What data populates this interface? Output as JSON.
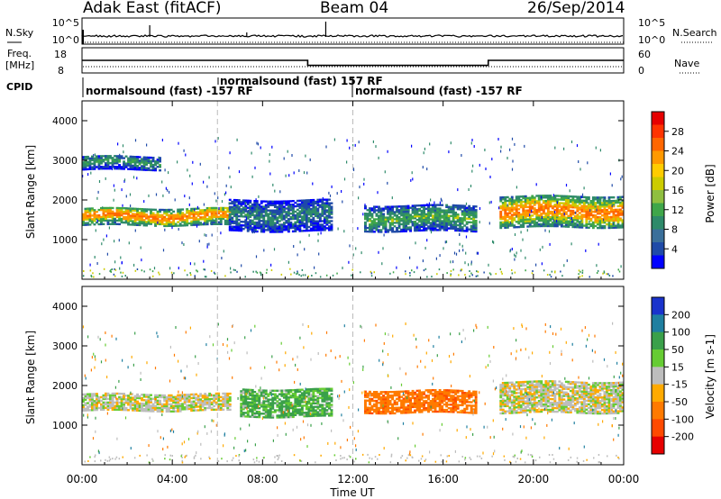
{
  "header": {
    "station": "Adak East (fitACF)",
    "beam": "Beam 04",
    "date": "26/Sep/2014"
  },
  "top_panel": {
    "left_label": "N.Sky",
    "right_label": "N.Search",
    "left_ticks": [
      "10^5",
      "10^0"
    ],
    "right_ticks": [
      "10^5",
      "10^0"
    ]
  },
  "freq_panel": {
    "left_label_1": "Freq.",
    "left_label_2": "[MHz]",
    "right_label": "Nave",
    "left_ticks": [
      "18",
      "8"
    ],
    "right_ticks": [
      "60",
      "0"
    ]
  },
  "cpid_panel": {
    "label": "CPID",
    "segments": [
      {
        "text": "normalsound (fast) -157 RF"
      },
      {
        "text": "normalsound (fast) 157 RF"
      },
      {
        "text": "normalsound (fast) -157 RF"
      }
    ]
  },
  "power_panel": {
    "ylabel": "Slant Range [km]",
    "yticks": [
      "4000",
      "3000",
      "2000",
      "1000"
    ],
    "colorbar": {
      "label": "Power [dB]",
      "ticks": [
        "28",
        "24",
        "20",
        "16",
        "12",
        "8",
        "4"
      ],
      "colors": [
        "#e60000",
        "#ff3300",
        "#ff6600",
        "#ff9900",
        "#ffcc00",
        "#cccc00",
        "#8fbf40",
        "#3fa64a",
        "#2e8a6a",
        "#3a6f9a",
        "#1f4aa8",
        "#0000ff"
      ]
    }
  },
  "velocity_panel": {
    "ylabel": "Slant Range [km]",
    "yticks": [
      "4000",
      "3000",
      "2000",
      "1000"
    ],
    "colorbar": {
      "label": "Velocity [m s-1]",
      "ticks": [
        "200",
        "100",
        "50",
        "15",
        "-15",
        "-50",
        "-100",
        "-200"
      ],
      "colors": [
        "#1a33cc",
        "#1f7fa0",
        "#3aa04a",
        "#66cc33",
        "#bdbdbd",
        "#ffaa00",
        "#ff7a00",
        "#ff4a00",
        "#e60000"
      ]
    }
  },
  "xaxis": {
    "label": "Time UT",
    "ticks": [
      "00:00",
      "04:00",
      "08:00",
      "12:00",
      "16:00",
      "20:00",
      "00:00"
    ]
  },
  "chart_data": {
    "type": "heatmap",
    "title": "Adak East (fitACF)",
    "subtitle": "Beam 04",
    "xlabel": "Time UT",
    "ylabel": "Slant Range [km]",
    "x_range_hours": [
      0,
      24
    ],
    "ylim": [
      0,
      4500
    ],
    "freq_mhz_steps": [
      {
        "from": 0,
        "to": 10,
        "value": 13
      },
      {
        "from": 10,
        "to": 18,
        "value": 11
      },
      {
        "from": 18,
        "to": 24,
        "value": 13
      }
    ],
    "cpid_segments": [
      {
        "from": 0,
        "to": 6,
        "label": "normalsound (fast) -157 RF"
      },
      {
        "from": 6,
        "to": 12,
        "label": "normalsound (fast) 157 RF"
      },
      {
        "from": 12,
        "to": 24,
        "label": "normalsound (fast) -157 RF"
      }
    ],
    "power_echo_bands": [
      {
        "t0": 0,
        "t1": 6.5,
        "r0": 1350,
        "r1": 1800,
        "peak_db": 24
      },
      {
        "t0": 0,
        "t1": 3.5,
        "r0": 2750,
        "r1": 3100,
        "peak_db": 12
      },
      {
        "t0": 6.5,
        "t1": 11,
        "r0": 1200,
        "r1": 2000,
        "peak_db": 10
      },
      {
        "t0": 12.5,
        "t1": 17.5,
        "r0": 1200,
        "r1": 1850,
        "peak_db": 14
      },
      {
        "t0": 18.5,
        "t1": 24,
        "r0": 1300,
        "r1": 2100,
        "peak_db": 24
      }
    ],
    "velocity_echo_bands": [
      {
        "t0": 0,
        "t1": 6.5,
        "r0": 1350,
        "r1": 1800,
        "velocity": 0
      },
      {
        "t0": 7,
        "t1": 11,
        "r0": 1200,
        "r1": 1900,
        "velocity": 40
      },
      {
        "t0": 12.5,
        "t1": 17.5,
        "r0": 1300,
        "r1": 1850,
        "velocity": -80
      },
      {
        "t0": 18.5,
        "t1": 24,
        "r0": 1300,
        "r1": 2100,
        "velocity": 0
      }
    ]
  }
}
